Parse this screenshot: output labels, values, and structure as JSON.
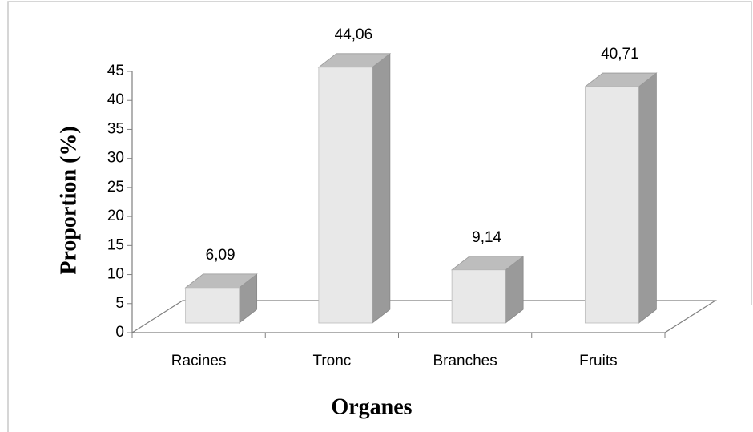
{
  "chart_data": {
    "type": "bar3d",
    "x_label": "Organes",
    "y_label": "Proportion (%)",
    "categories": [
      "Racines",
      "Tronc",
      "Branches",
      "Fruits"
    ],
    "values": [
      6.09,
      44.06,
      9.14,
      40.71
    ],
    "value_labels": [
      "6,09",
      "44,06",
      "9,14",
      "40,71"
    ],
    "color": "#e8e8e8",
    "ylim": [
      0,
      45
    ],
    "yticks": [
      0,
      5,
      10,
      15,
      20,
      25,
      30,
      35,
      40,
      45
    ]
  }
}
